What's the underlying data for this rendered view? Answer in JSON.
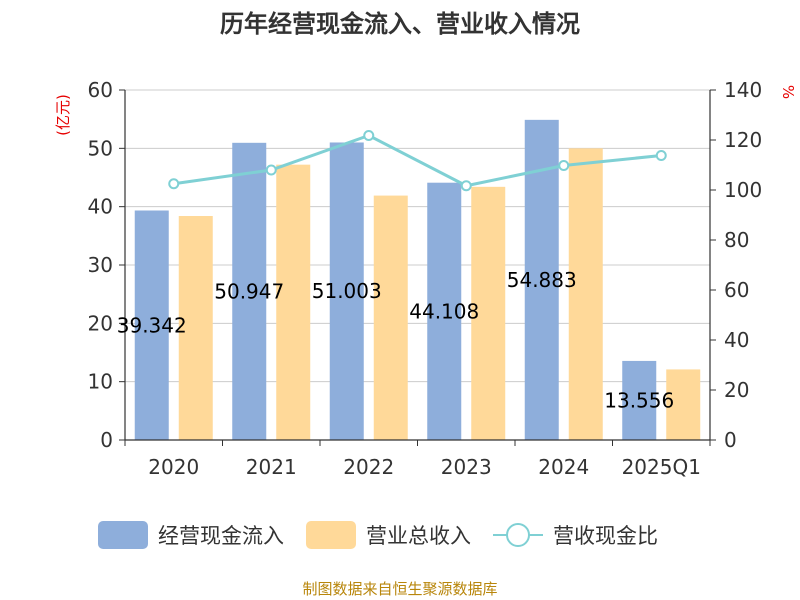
{
  "chart_data": {
    "type": "bar",
    "title": "历年经营现金流入、营业收入情况",
    "categories": [
      "2020",
      "2021",
      "2022",
      "2023",
      "2024",
      "2025Q1"
    ],
    "series": [
      {
        "name": "经营现金流入",
        "kind": "bar",
        "axis": "left",
        "color": "#8eaedb",
        "values": [
          39.342,
          50.947,
          51.003,
          44.108,
          54.883,
          13.556
        ],
        "labels": [
          "39.342",
          "50.947",
          "51.003",
          "44.108",
          "54.883",
          "13.556"
        ]
      },
      {
        "name": "营业总收入",
        "kind": "bar",
        "axis": "left",
        "color": "#ffd999",
        "values": [
          38.4,
          47.2,
          41.9,
          43.4,
          50.0,
          12.1
        ]
      },
      {
        "name": "营收现金比",
        "kind": "line",
        "axis": "right",
        "color": "#7fd0d4",
        "values": [
          102.5,
          108.0,
          121.8,
          101.7,
          109.8,
          113.8
        ]
      }
    ],
    "y_left": {
      "unit": "(亿元)",
      "min": 0,
      "max": 60,
      "ticks": [
        0,
        10,
        20,
        30,
        40,
        50,
        60
      ]
    },
    "y_right": {
      "unit": "%",
      "min": 0,
      "max": 140,
      "ticks": [
        0,
        20,
        40,
        60,
        80,
        100,
        120,
        140
      ]
    },
    "grid": true,
    "legend": "bottom"
  },
  "source": "制图数据来自恒生聚源数据库"
}
